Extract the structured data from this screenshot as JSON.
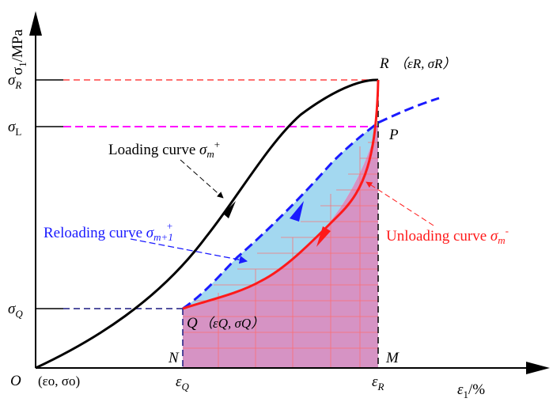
{
  "axes": {
    "y_label": "σ",
    "y_label_sub": "1",
    "y_label_unit": "/MPa",
    "x_label": "ε",
    "x_label_sub": "1",
    "x_label_unit": "/%",
    "origin_label": "O",
    "origin_coords": "(εo, σo)"
  },
  "y_ticks": {
    "sigma_R": {
      "main": "σ",
      "sub": "R"
    },
    "sigma_L": {
      "main": "σ",
      "sub": "L"
    },
    "sigma_Q": {
      "main": "σ",
      "sub": "Q"
    }
  },
  "x_ticks": {
    "eps_Q": {
      "main": "ε",
      "sub": "Q"
    },
    "eps_R": {
      "main": "ε",
      "sub": "R"
    }
  },
  "points": {
    "R": {
      "name": "R",
      "coords": "（εR, σR）"
    },
    "P": {
      "name": "P"
    },
    "Q": {
      "name": "Q",
      "coords": "（εQ, σQ）"
    },
    "N": {
      "name": "N"
    },
    "M": {
      "name": "M"
    }
  },
  "curves": {
    "loading": {
      "text": "Loading curve ",
      "symbol": "σ",
      "sub": "m",
      "sup": "+",
      "color": "#000000"
    },
    "reloading": {
      "text": "Reloading curve ",
      "symbol": "σ",
      "sub": "m+1",
      "sup": "+",
      "color": "#1a1aff"
    },
    "unloading": {
      "text": "Unloading curve ",
      "symbol": "σ",
      "sub": "m",
      "sup": "-",
      "color": "#ff1a1a"
    }
  },
  "colors": {
    "axis": "#000000",
    "guide_R": "#ff4040",
    "guide_L": "#ff00ff",
    "guide_Q": "#1a1a80",
    "fill_blue": "#a3d8f0",
    "fill_pink": "#d693c4",
    "hatch": "#ff6b6b"
  }
}
